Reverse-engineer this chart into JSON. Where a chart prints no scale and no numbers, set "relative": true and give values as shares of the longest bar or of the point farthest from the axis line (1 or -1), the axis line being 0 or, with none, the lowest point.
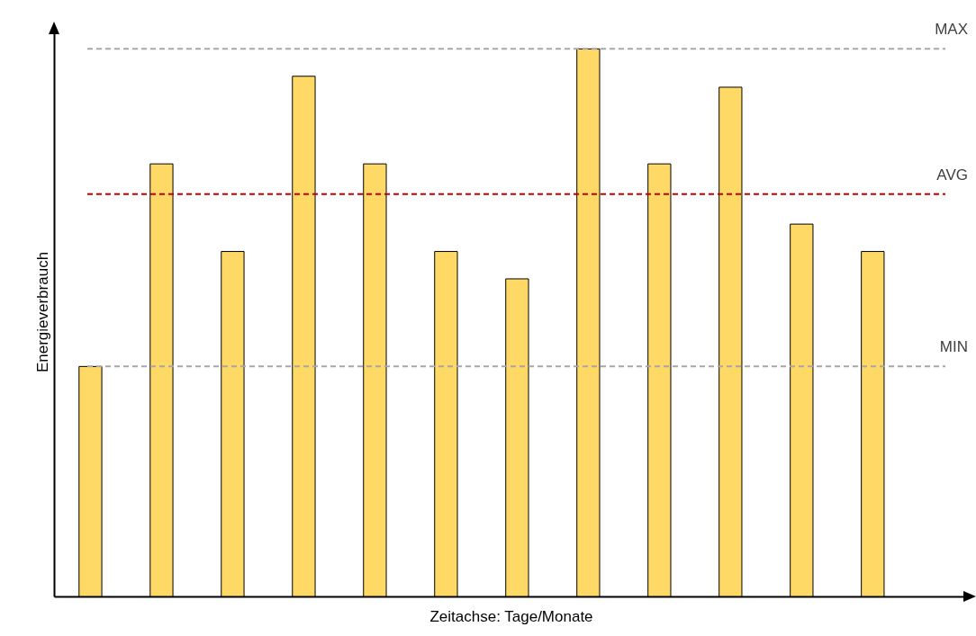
{
  "chart_data": {
    "type": "bar",
    "relative": true,
    "xlabel": "Zeitachse: Tage/Monate",
    "ylabel": "Energieverbrauch",
    "categories": [
      null,
      null,
      null,
      null,
      null,
      null,
      null,
      null,
      null,
      null,
      null,
      null
    ],
    "values": [
      0.42,
      0.79,
      0.63,
      0.95,
      0.79,
      0.63,
      0.58,
      1,
      0.79,
      0.93,
      0.68,
      0.63
    ],
    "color": "#ffd966",
    "grid": false,
    "ref_lines": [
      {
        "axis": "y",
        "value": 1,
        "label": "MAX",
        "color": "#a6a6a6",
        "line_style": "dashed"
      },
      {
        "axis": "y",
        "value": 0.735,
        "label": "AVG",
        "color": "#c00000",
        "line_style": "dashed"
      },
      {
        "axis": "y",
        "value": 0.42,
        "label": "MIN",
        "color": "#a6a6a6",
        "line_style": "dashed"
      }
    ]
  }
}
